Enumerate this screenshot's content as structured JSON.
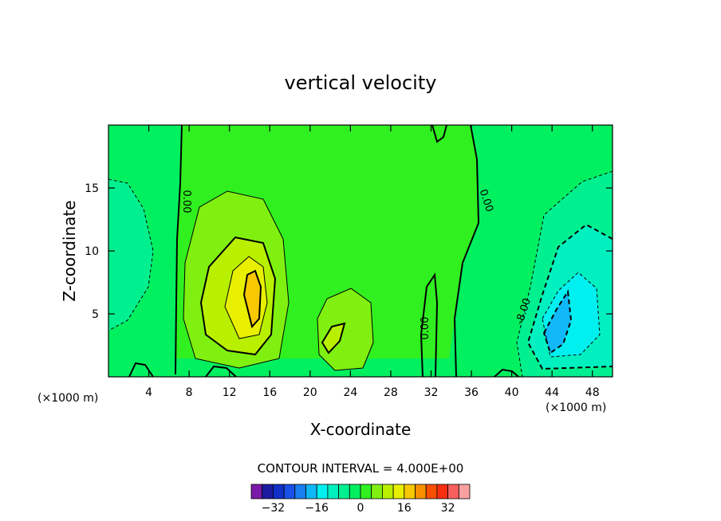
{
  "chart_data": {
    "type": "heatmap",
    "title": "vertical velocity",
    "xlabel": "X-coordinate",
    "ylabel": "Z-coordinate",
    "x_unit_left": "(×1000 m)",
    "x_unit_right": "(×1000 m)",
    "xlim": [
      0,
      50
    ],
    "ylim": [
      0,
      20
    ],
    "x_ticks": [
      4,
      8,
      12,
      16,
      20,
      24,
      28,
      32,
      36,
      40,
      44,
      48
    ],
    "y_ticks": [
      5,
      10,
      15
    ],
    "contour_interval_text": "CONTOUR INTERVAL =  4.000E+00",
    "contour_labels": [
      "0.00",
      "0.00",
      "0.00",
      "-8.00"
    ],
    "colorbar": {
      "levels": [
        -36,
        -32,
        -28,
        -24,
        -20,
        -16,
        -12,
        -8,
        -4,
        0,
        4,
        8,
        12,
        16,
        20,
        24,
        28,
        32,
        36
      ],
      "colors": [
        "#7b1aa8",
        "#1c1ca0",
        "#1030c8",
        "#1850e8",
        "#1a7ff0",
        "#10b8f8",
        "#00f0f0",
        "#00f0c0",
        "#00f090",
        "#00f060",
        "#30f020",
        "#80f010",
        "#b8f000",
        "#e8f000",
        "#f8c800",
        "#f89000",
        "#f85000",
        "#f83010",
        "#f86060",
        "#f8a0a0"
      ],
      "tick_values": [
        -32,
        -16,
        0,
        16,
        32
      ],
      "tick_labels": [
        "−32",
        "−16",
        "0",
        "16",
        "32"
      ]
    },
    "features": [
      {
        "name": "updraft",
        "x_center": 14.5,
        "z_center": 5.5,
        "max": 20
      },
      {
        "name": "secondary-updraft",
        "x_center": 22.5,
        "z_center": 3.0,
        "max": 8
      },
      {
        "name": "downdraft",
        "x_center": 44.5,
        "z_center": 4.0,
        "min": -16
      },
      {
        "name": "weak-downdraft-left",
        "x_center": 2,
        "z_center": 9,
        "min": -4
      }
    ]
  }
}
